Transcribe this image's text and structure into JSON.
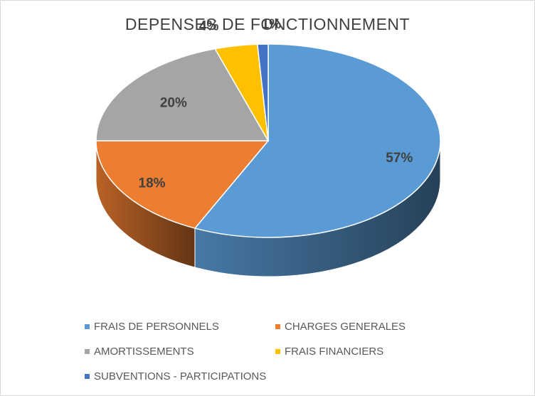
{
  "chart_data": {
    "type": "pie",
    "title": "DEPENSES DE FONCTIONNEMENT",
    "categories": [
      "FRAIS DE PERSONNELS",
      "CHARGES GENERALES",
      "AMORTISSEMENTS",
      "FRAIS FINANCIERS",
      "SUBVENTIONS - PARTICIPATIONS"
    ],
    "values": [
      57,
      18,
      20,
      4,
      1
    ],
    "data_labels": [
      "57%",
      "18%",
      "20%",
      "4%",
      "1%"
    ],
    "colors": [
      "#5b9bd5",
      "#ed7d31",
      "#a5a5a5",
      "#ffc000",
      "#4472c4"
    ],
    "style": "3d",
    "legend_position": "bottom"
  }
}
